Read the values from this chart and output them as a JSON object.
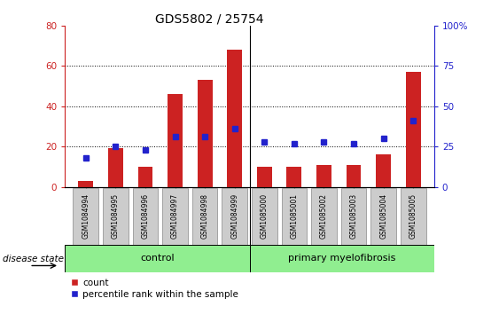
{
  "title": "GDS5802 / 25754",
  "samples": [
    "GSM1084994",
    "GSM1084995",
    "GSM1084996",
    "GSM1084997",
    "GSM1084998",
    "GSM1084999",
    "GSM1085000",
    "GSM1085001",
    "GSM1085002",
    "GSM1085003",
    "GSM1085004",
    "GSM1085005"
  ],
  "counts": [
    3,
    19,
    10,
    46,
    53,
    68,
    10,
    10,
    11,
    11,
    16,
    57
  ],
  "percentiles": [
    18,
    25,
    23,
    31,
    31,
    36,
    28,
    27,
    28,
    27,
    30,
    41
  ],
  "group_boundary": 6,
  "ylim_left": [
    0,
    80
  ],
  "ylim_right": [
    0,
    100
  ],
  "yticks_left": [
    0,
    20,
    40,
    60,
    80
  ],
  "yticks_right": [
    0,
    25,
    50,
    75,
    100
  ],
  "ytick_labels_right": [
    "0",
    "25",
    "50",
    "75",
    "100%"
  ],
  "grid_values": [
    20,
    40,
    60
  ],
  "bar_color": "#cc2222",
  "dot_color": "#2222cc",
  "bar_width": 0.5,
  "group_labels": [
    "control",
    "primary myelofibrosis"
  ],
  "legend_count_label": "count",
  "legend_percentile_label": "percentile rank within the sample"
}
